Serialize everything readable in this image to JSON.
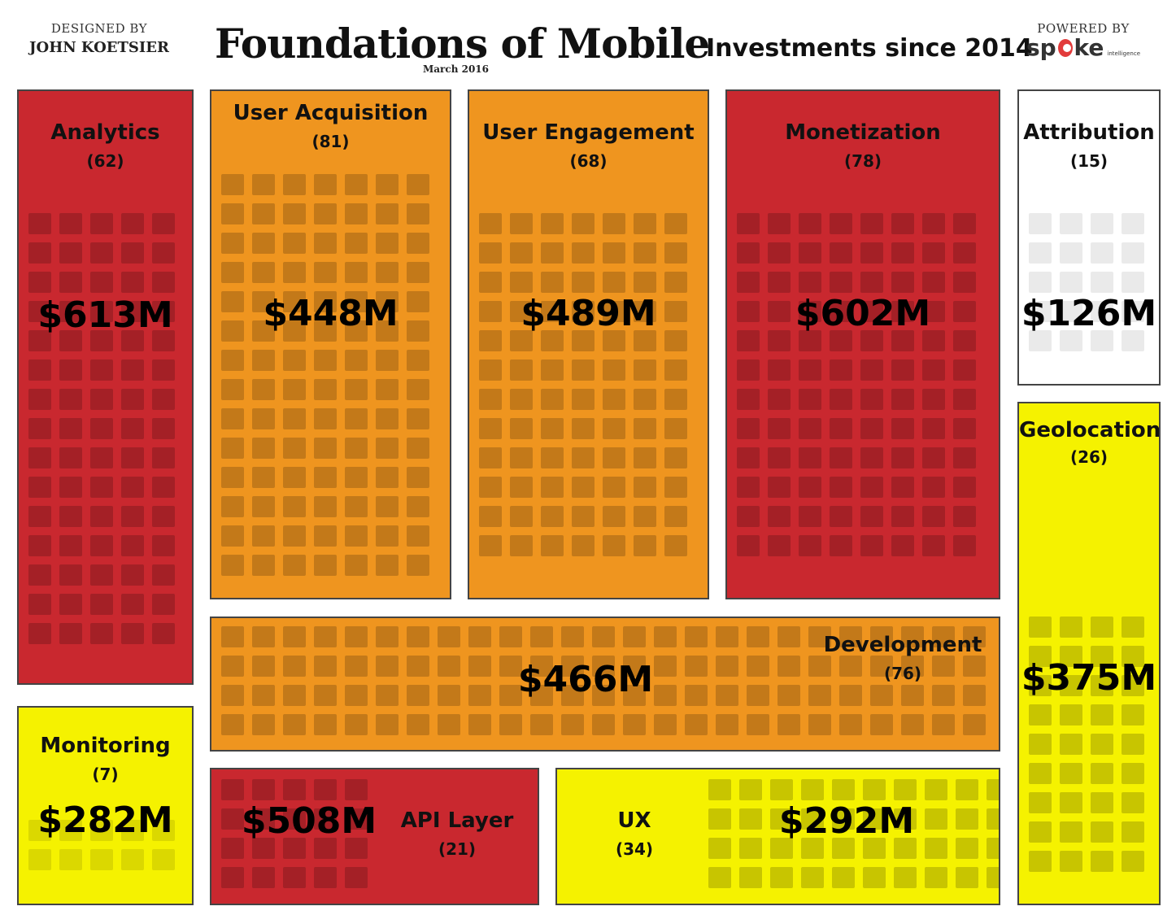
{
  "header": {
    "designed_by": "DESIGNED BY",
    "designer": "JOHN KOETSIER",
    "title": "Foundations of Mobile",
    "subtitle": "Investments since 2014",
    "date": "March 2016",
    "powered_by": "POWERED BY",
    "logo_pre": "sp",
    "logo_post": "ke",
    "logo_small": "intelligence"
  },
  "colors": {
    "red": "#c9282f",
    "orange": "#ef951f",
    "yellow": "#f5f200",
    "white": "#ffffff"
  },
  "categories": [
    {
      "name": "Analytics",
      "count": "(62)",
      "amount": "$613M",
      "color": "red"
    },
    {
      "name": "User Acquisition",
      "count": "(81)",
      "amount": "$448M",
      "color": "orange"
    },
    {
      "name": "User Engagement",
      "count": "(68)",
      "amount": "$489M",
      "color": "orange"
    },
    {
      "name": "Monetization",
      "count": "(78)",
      "amount": "$602M",
      "color": "red"
    },
    {
      "name": "Attribution",
      "count": "(15)",
      "amount": "$126M",
      "color": "white"
    },
    {
      "name": "Geolocation",
      "count": "(26)",
      "amount": "$375M",
      "color": "yellow"
    },
    {
      "name": "Development",
      "count": "(76)",
      "amount": "$466M",
      "color": "orange"
    },
    {
      "name": "Monitoring",
      "count": "(7)",
      "amount": "$282M",
      "color": "yellow"
    },
    {
      "name": "API Layer",
      "count": "(21)",
      "amount": "$508M",
      "color": "red"
    },
    {
      "name": "UX",
      "count": "(34)",
      "amount": "$292M",
      "color": "yellow"
    }
  ]
}
